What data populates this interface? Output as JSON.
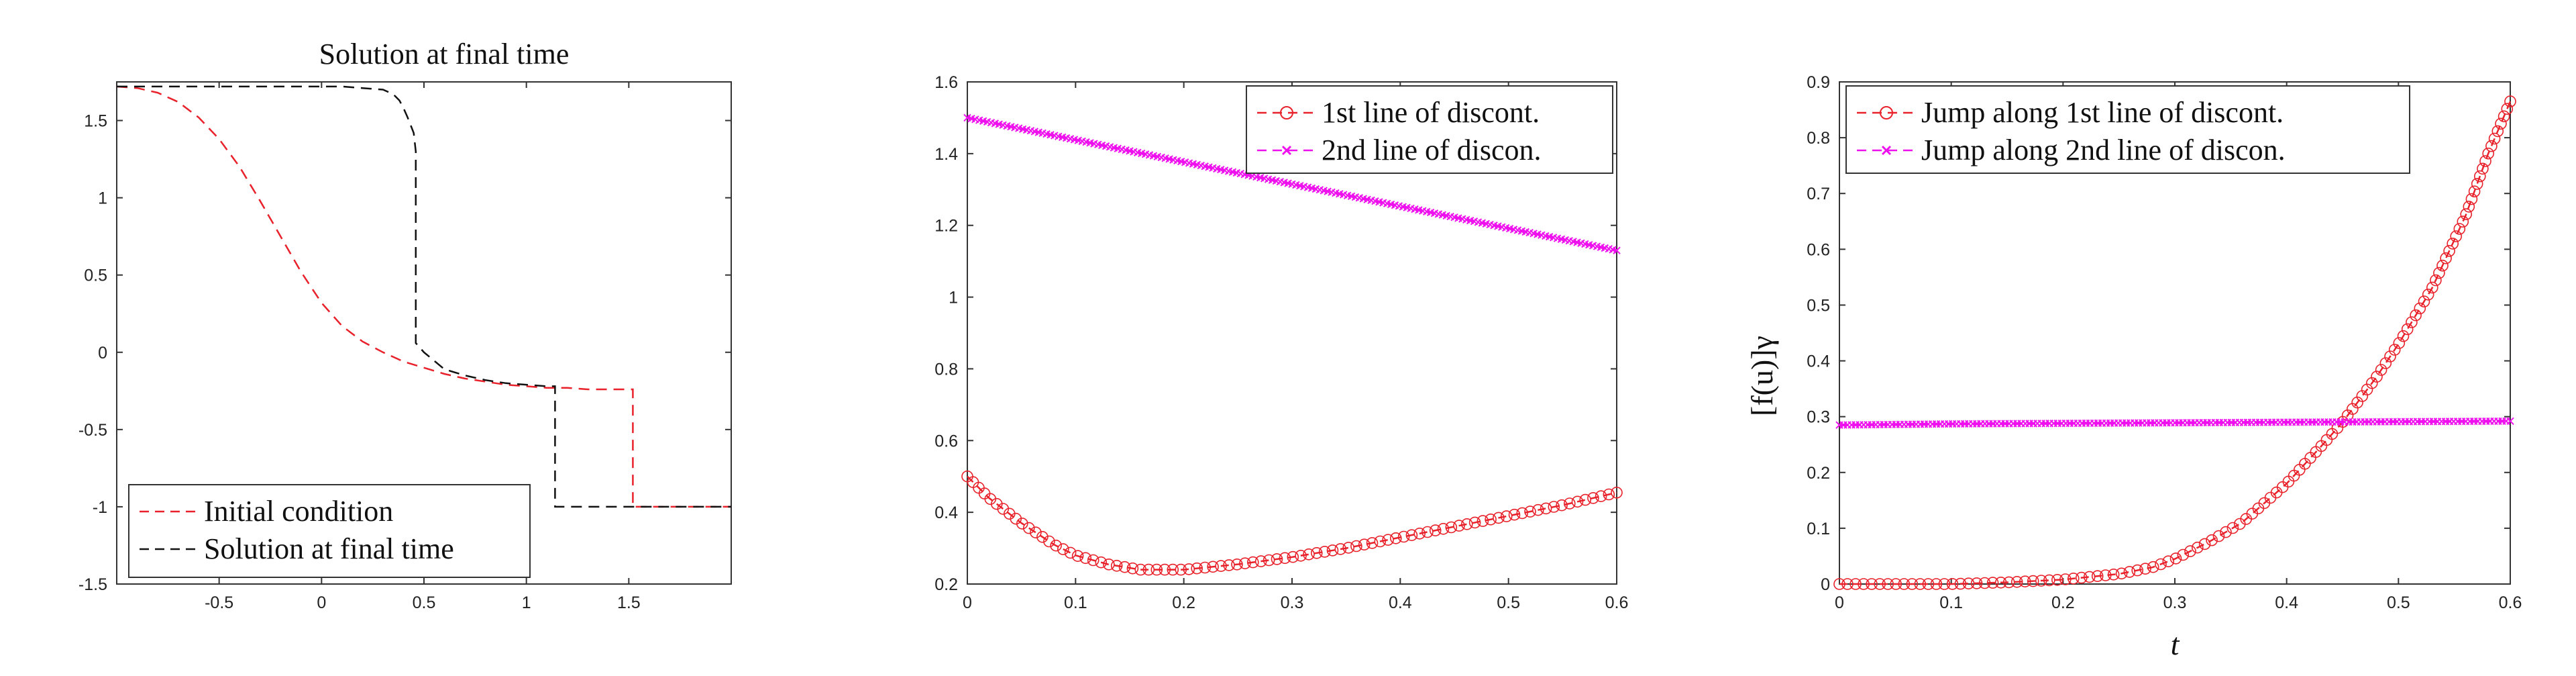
{
  "colors": {
    "red": "#e8212a",
    "magenta": "#ee11ee",
    "black": "#111111",
    "axis": "#333333"
  },
  "chart_data": [
    {
      "type": "line",
      "title": "Solution at final time",
      "xlabel": "",
      "ylabel": "",
      "xlim": [
        -1,
        2
      ],
      "ylim": [
        -1.5,
        1.75
      ],
      "xticks": [
        "-0.5",
        "0",
        "0.5",
        "1",
        "1.5"
      ],
      "xtick_values": [
        -0.5,
        0,
        0.5,
        1,
        1.5
      ],
      "yticks": [
        "-1.5",
        "-1",
        "-0.5",
        "0",
        "0.5",
        "1",
        "1.5"
      ],
      "ytick_values": [
        -1.5,
        -1,
        -0.5,
        0,
        0.5,
        1,
        1.5
      ],
      "legend_location": "bottom-left",
      "series": [
        {
          "name": "Initial condition",
          "color": "#e8212a",
          "style": "dashed",
          "marker": "none",
          "x": [
            -1,
            -0.9,
            -0.8,
            -0.7,
            -0.6,
            -0.5,
            -0.4,
            -0.3,
            -0.2,
            -0.1,
            0,
            0.1,
            0.2,
            0.3,
            0.4,
            0.5,
            0.6,
            0.7,
            0.8,
            0.9,
            1.0,
            1.1,
            1.2,
            1.3,
            1.4,
            1.52,
            1.52,
            2.0
          ],
          "y": [
            1.72,
            1.71,
            1.68,
            1.62,
            1.52,
            1.38,
            1.2,
            0.98,
            0.75,
            0.52,
            0.32,
            0.17,
            0.07,
            0.0,
            -0.06,
            -0.1,
            -0.14,
            -0.17,
            -0.19,
            -0.21,
            -0.22,
            -0.23,
            -0.23,
            -0.24,
            -0.24,
            -0.24,
            -1.0,
            -1.0
          ]
        },
        {
          "name": "Solution at final time",
          "color": "#111111",
          "style": "dashed",
          "marker": "none",
          "x": [
            -1,
            -0.5,
            0,
            0.1,
            0.2,
            0.3,
            0.35,
            0.38,
            0.4,
            0.42,
            0.45,
            0.46,
            0.46,
            0.5,
            0.6,
            0.7,
            0.8,
            0.9,
            1.0,
            1.1,
            1.14,
            1.14,
            2.0
          ],
          "y": [
            1.72,
            1.72,
            1.72,
            1.72,
            1.71,
            1.7,
            1.67,
            1.63,
            1.58,
            1.52,
            1.42,
            1.3,
            0.06,
            0.0,
            -0.11,
            -0.15,
            -0.18,
            -0.2,
            -0.21,
            -0.22,
            -0.22,
            -1.0,
            -1.0
          ]
        }
      ]
    },
    {
      "type": "line",
      "title": "",
      "xlabel": "",
      "ylabel": "",
      "xlim": [
        0,
        0.6
      ],
      "ylim": [
        0.2,
        1.6
      ],
      "xticks": [
        "0",
        "0.1",
        "0.2",
        "0.3",
        "0.4",
        "0.5",
        "0.6"
      ],
      "xtick_values": [
        0,
        0.1,
        0.2,
        0.3,
        0.4,
        0.5,
        0.6
      ],
      "yticks": [
        "0.2",
        "0.4",
        "0.6",
        "0.8",
        "1",
        "1.2",
        "1.4",
        "1.6"
      ],
      "ytick_values": [
        0.2,
        0.4,
        0.6,
        0.8,
        1,
        1.2,
        1.4,
        1.6
      ],
      "legend_location": "top-right",
      "series": [
        {
          "name": "1st line of discont.",
          "color": "#e8212a",
          "style": "dashed",
          "marker": "circle",
          "x": [
            0,
            0.02,
            0.05,
            0.08,
            0.1,
            0.13,
            0.16,
            0.2,
            0.25,
            0.3,
            0.35,
            0.4,
            0.45,
            0.5,
            0.55,
            0.6
          ],
          "y": [
            0.5,
            0.44,
            0.37,
            0.31,
            0.28,
            0.255,
            0.24,
            0.24,
            0.255,
            0.275,
            0.3,
            0.33,
            0.36,
            0.39,
            0.42,
            0.455
          ]
        },
        {
          "name": "2nd line of discon.",
          "color": "#ee11ee",
          "style": "dashed",
          "marker": "x",
          "x": [
            0,
            0.6
          ],
          "y": [
            1.5,
            1.13
          ]
        }
      ]
    },
    {
      "type": "line",
      "title": "",
      "xlabel": "t",
      "ylabel": "[f(u)]γ",
      "xlim": [
        0,
        0.6
      ],
      "ylim": [
        0,
        0.9
      ],
      "xticks": [
        "0",
        "0.1",
        "0.2",
        "0.3",
        "0.4",
        "0.5",
        "0.6"
      ],
      "xtick_values": [
        0,
        0.1,
        0.2,
        0.3,
        0.4,
        0.5,
        0.6
      ],
      "yticks": [
        "0",
        "0.1",
        "0.2",
        "0.3",
        "0.4",
        "0.5",
        "0.6",
        "0.7",
        "0.8",
        "0.9"
      ],
      "ytick_values": [
        0,
        0.1,
        0.2,
        0.3,
        0.4,
        0.5,
        0.6,
        0.7,
        0.8,
        0.9
      ],
      "legend_location": "top-left",
      "series": [
        {
          "name": "Jump along 1st line of discont.",
          "color": "#e8212a",
          "style": "dashed",
          "marker": "circle",
          "x": [
            0,
            0.05,
            0.1,
            0.15,
            0.2,
            0.25,
            0.28,
            0.3,
            0.33,
            0.36,
            0.4,
            0.43,
            0.45,
            0.48,
            0.5,
            0.53,
            0.56,
            0.58,
            0.6
          ],
          "y": [
            0.0,
            0.0,
            0.0,
            0.003,
            0.008,
            0.018,
            0.03,
            0.045,
            0.075,
            0.11,
            0.18,
            0.245,
            0.29,
            0.37,
            0.43,
            0.53,
            0.66,
            0.77,
            0.865
          ]
        },
        {
          "name": "Jump along 2nd line of discon.",
          "color": "#ee11ee",
          "style": "dashed",
          "marker": "x",
          "x": [
            0,
            0.1,
            0.2,
            0.3,
            0.4,
            0.5,
            0.6
          ],
          "y": [
            0.285,
            0.287,
            0.288,
            0.289,
            0.29,
            0.291,
            0.292
          ]
        }
      ]
    }
  ]
}
